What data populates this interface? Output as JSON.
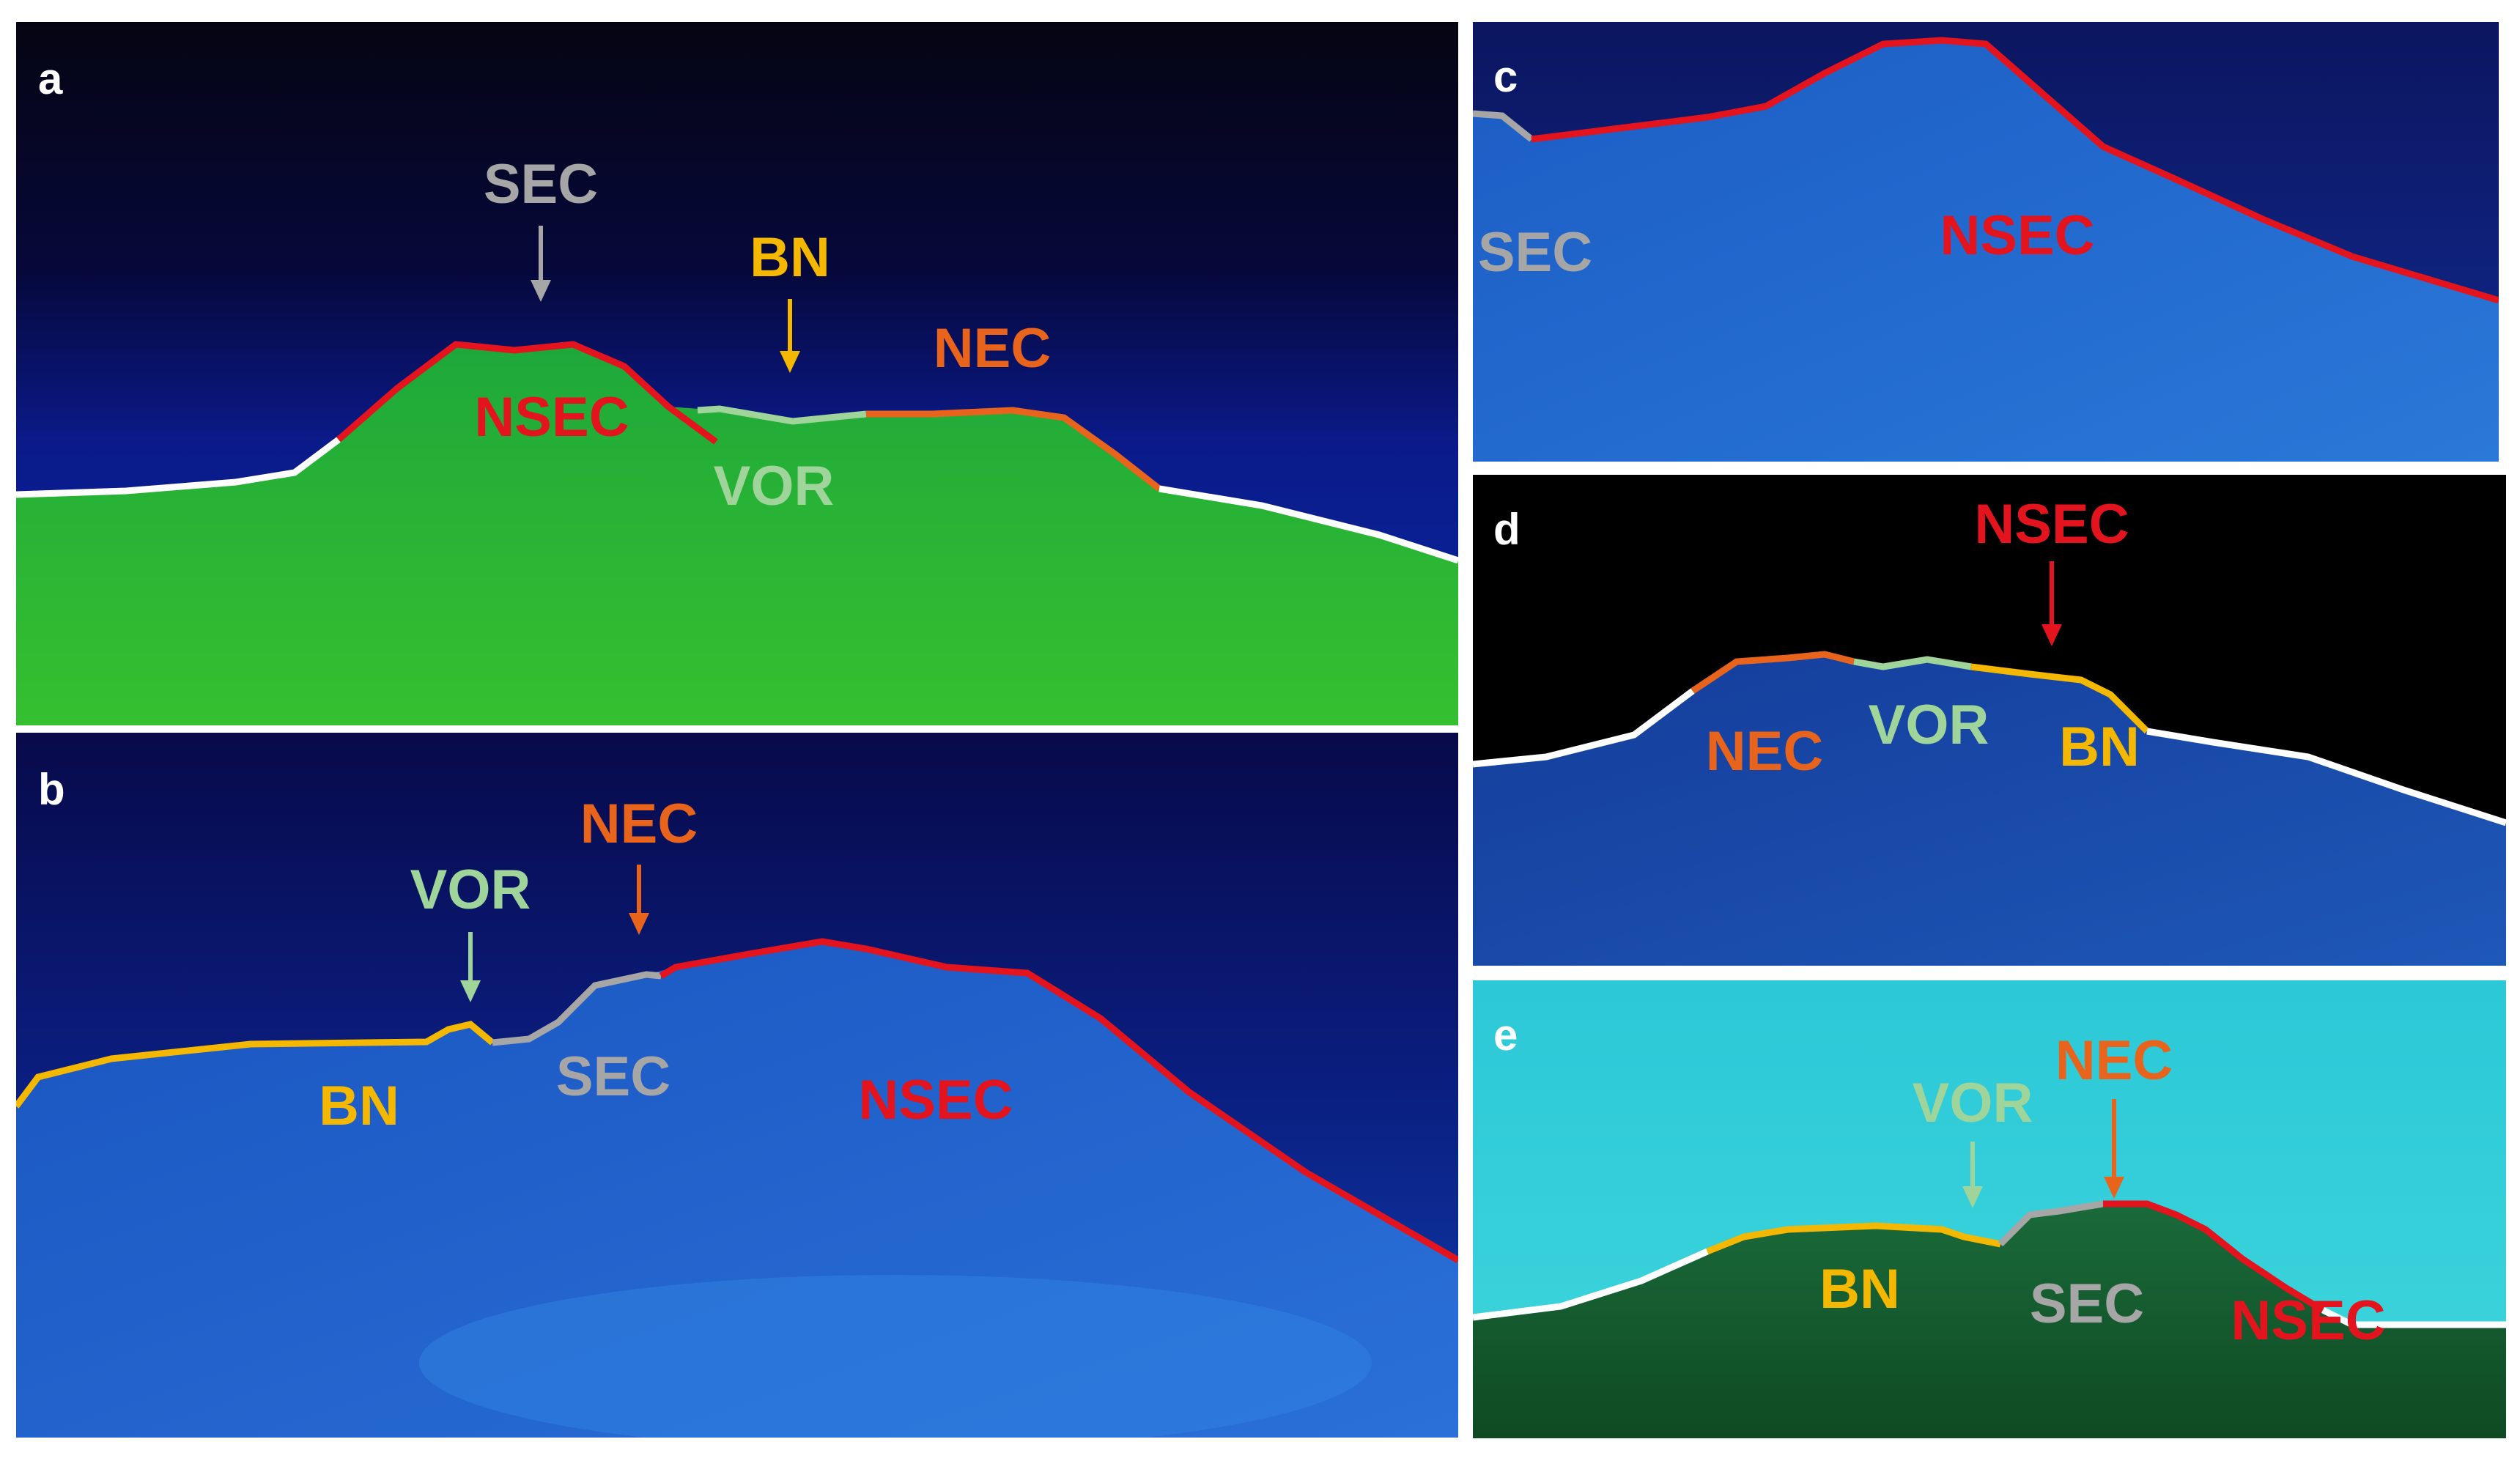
{
  "colors": {
    "SEC": "#a6a6a6",
    "BN": "#f5b800",
    "NEC": "#e8641c",
    "NSEC": "#e3141e",
    "VOR": "#9fd49a",
    "outline": "#ffffff"
  },
  "panels": [
    {
      "id": "a",
      "label": "a",
      "annotations": [
        {
          "text": "SEC",
          "color": "SEC",
          "arrow": true
        },
        {
          "text": "BN",
          "color": "BN",
          "arrow": true
        },
        {
          "text": "NEC",
          "color": "NEC"
        },
        {
          "text": "NSEC",
          "color": "NSEC"
        },
        {
          "text": "VOR",
          "color": "VOR"
        }
      ]
    },
    {
      "id": "b",
      "label": "b",
      "annotations": [
        {
          "text": "VOR",
          "color": "VOR",
          "arrow": true
        },
        {
          "text": "NEC",
          "color": "NEC",
          "arrow": true
        },
        {
          "text": "BN",
          "color": "BN"
        },
        {
          "text": "SEC",
          "color": "SEC"
        },
        {
          "text": "NSEC",
          "color": "NSEC"
        }
      ]
    },
    {
      "id": "c",
      "label": "c",
      "annotations": [
        {
          "text": "SEC",
          "color": "SEC"
        },
        {
          "text": "NSEC",
          "color": "NSEC"
        }
      ]
    },
    {
      "id": "d",
      "label": "d",
      "annotations": [
        {
          "text": "NSEC",
          "color": "NSEC",
          "arrow": true
        },
        {
          "text": "NEC",
          "color": "NEC"
        },
        {
          "text": "VOR",
          "color": "VOR"
        },
        {
          "text": "BN",
          "color": "BN"
        }
      ]
    },
    {
      "id": "e",
      "label": "e",
      "annotations": [
        {
          "text": "VOR",
          "color": "VOR",
          "arrow": true
        },
        {
          "text": "NEC",
          "color": "NEC",
          "arrow": true
        },
        {
          "text": "BN",
          "color": "BN"
        },
        {
          "text": "SEC",
          "color": "SEC"
        },
        {
          "text": "NSEC",
          "color": "NSEC"
        }
      ]
    }
  ]
}
